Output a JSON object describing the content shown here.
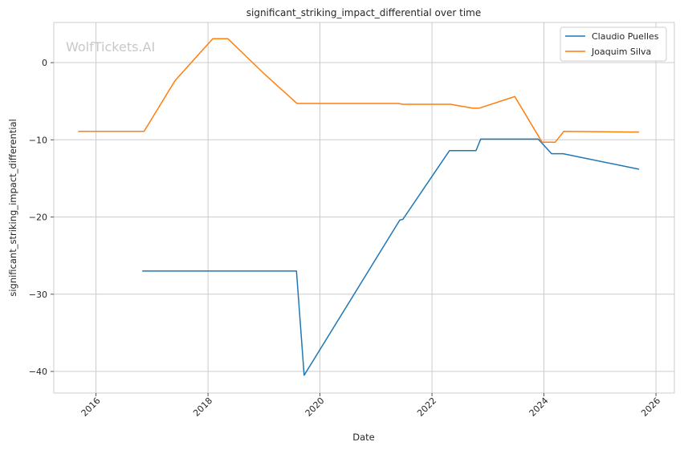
{
  "watermark": "WolfTickets.AI",
  "chart_data": {
    "type": "line",
    "title": "significant_striking_impact_differential over time",
    "xlabel": "Date",
    "ylabel": "significant_striking_impact_differential",
    "xlim": [
      "2015-04-01",
      "2026-05-01"
    ],
    "ylim": [
      -42.8,
      5.2
    ],
    "x_ticks": [
      "2016",
      "2018",
      "2020",
      "2022",
      "2024",
      "2026"
    ],
    "y_ticks": [
      0,
      -10,
      -20,
      -30,
      -40
    ],
    "y_tick_labels": [
      "0",
      "−10",
      "−20",
      "−30",
      "−40"
    ],
    "grid": true,
    "legend_position": "top-right",
    "series": [
      {
        "name": "Claudio Puelles",
        "color": "#1f77b4",
        "points": [
          {
            "x": "2016-11-01",
            "y": -27.0
          },
          {
            "x": "2019-08-01",
            "y": -27.0
          },
          {
            "x": "2019-09-20",
            "y": -40.5
          },
          {
            "x": "2021-06-05",
            "y": -20.4
          },
          {
            "x": "2021-06-25",
            "y": -20.3
          },
          {
            "x": "2022-04-25",
            "y": -11.4
          },
          {
            "x": "2022-10-15",
            "y": -11.4
          },
          {
            "x": "2022-11-15",
            "y": -9.9
          },
          {
            "x": "2023-11-25",
            "y": -9.9
          },
          {
            "x": "2024-02-20",
            "y": -11.8
          },
          {
            "x": "2024-05-05",
            "y": -11.8
          },
          {
            "x": "2025-09-10",
            "y": -13.8
          }
        ]
      },
      {
        "name": "Joaquim Silva",
        "color": "#ff7f0e",
        "points": [
          {
            "x": "2015-09-10",
            "y": -8.9
          },
          {
            "x": "2016-11-10",
            "y": -8.9
          },
          {
            "x": "2017-06-01",
            "y": -2.3
          },
          {
            "x": "2018-02-01",
            "y": 3.1
          },
          {
            "x": "2018-05-10",
            "y": 3.1
          },
          {
            "x": "2019-01-05",
            "y": -1.5
          },
          {
            "x": "2019-08-05",
            "y": -5.3
          },
          {
            "x": "2021-06-01",
            "y": -5.3
          },
          {
            "x": "2021-06-20",
            "y": -5.4
          },
          {
            "x": "2022-05-01",
            "y": -5.4
          },
          {
            "x": "2022-09-25",
            "y": -5.9
          },
          {
            "x": "2022-11-05",
            "y": -5.9
          },
          {
            "x": "2023-06-25",
            "y": -4.4
          },
          {
            "x": "2023-12-20",
            "y": -10.3
          },
          {
            "x": "2024-03-15",
            "y": -10.3
          },
          {
            "x": "2024-05-10",
            "y": -8.9
          },
          {
            "x": "2025-09-10",
            "y": -9.0
          }
        ]
      }
    ]
  }
}
